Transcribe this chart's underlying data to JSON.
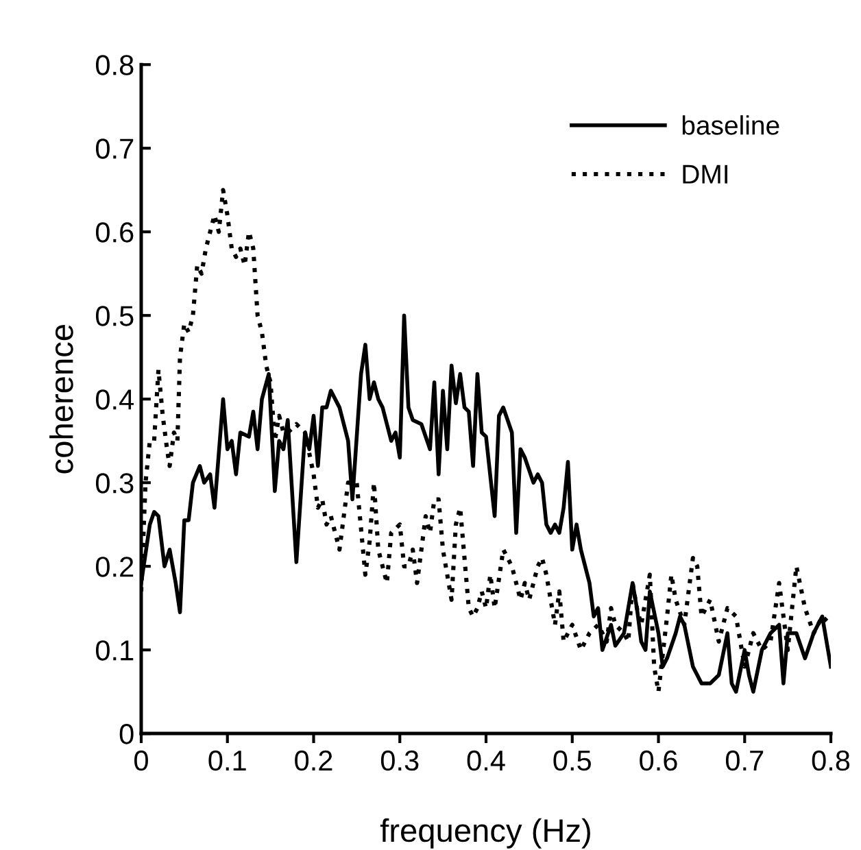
{
  "chart_data": {
    "type": "line",
    "xlabel": "frequency (Hz)",
    "ylabel": "coherence",
    "xlim": [
      0,
      0.8
    ],
    "ylim": [
      0,
      0.8
    ],
    "xticks": [
      0,
      0.1,
      0.2,
      0.3,
      0.4,
      0.5,
      0.6,
      0.7,
      0.8
    ],
    "yticks": [
      0,
      0.1,
      0.2,
      0.3,
      0.4,
      0.5,
      0.6,
      0.7,
      0.8
    ],
    "grid": false,
    "legend": "top right",
    "marker": "none",
    "series": [
      {
        "name": "baseline",
        "color": "#000000",
        "line_style": "solid",
        "x": [
          0,
          0.01,
          0.015,
          0.02,
          0.027,
          0.033,
          0.04,
          0.045,
          0.05,
          0.055,
          0.06,
          0.068,
          0.073,
          0.08,
          0.085,
          0.095,
          0.1,
          0.105,
          0.11,
          0.115,
          0.125,
          0.13,
          0.135,
          0.14,
          0.148,
          0.155,
          0.16,
          0.165,
          0.17,
          0.18,
          0.19,
          0.195,
          0.2,
          0.205,
          0.21,
          0.215,
          0.22,
          0.23,
          0.24,
          0.245,
          0.255,
          0.26,
          0.265,
          0.27,
          0.275,
          0.28,
          0.29,
          0.295,
          0.3,
          0.305,
          0.31,
          0.315,
          0.325,
          0.335,
          0.34,
          0.345,
          0.35,
          0.355,
          0.36,
          0.365,
          0.37,
          0.375,
          0.38,
          0.385,
          0.39,
          0.395,
          0.4,
          0.41,
          0.415,
          0.42,
          0.43,
          0.435,
          0.44,
          0.445,
          0.455,
          0.46,
          0.465,
          0.47,
          0.475,
          0.48,
          0.485,
          0.49,
          0.495,
          0.5,
          0.505,
          0.51,
          0.52,
          0.525,
          0.53,
          0.535,
          0.545,
          0.55,
          0.56,
          0.57,
          0.575,
          0.58,
          0.585,
          0.59,
          0.6,
          0.605,
          0.61,
          0.62,
          0.625,
          0.63,
          0.64,
          0.65,
          0.66,
          0.67,
          0.68,
          0.685,
          0.69,
          0.7,
          0.705,
          0.71,
          0.72,
          0.73,
          0.74,
          0.745,
          0.75,
          0.76,
          0.77,
          0.78,
          0.79,
          0.8
        ],
        "values": [
          0.18,
          0.25,
          0.265,
          0.26,
          0.2,
          0.22,
          0.18,
          0.145,
          0.255,
          0.255,
          0.3,
          0.32,
          0.3,
          0.31,
          0.27,
          0.4,
          0.34,
          0.35,
          0.31,
          0.36,
          0.355,
          0.385,
          0.34,
          0.4,
          0.43,
          0.29,
          0.35,
          0.34,
          0.375,
          0.205,
          0.36,
          0.34,
          0.38,
          0.32,
          0.39,
          0.39,
          0.41,
          0.39,
          0.35,
          0.28,
          0.43,
          0.465,
          0.4,
          0.42,
          0.4,
          0.39,
          0.35,
          0.36,
          0.33,
          0.5,
          0.39,
          0.375,
          0.37,
          0.34,
          0.42,
          0.31,
          0.41,
          0.34,
          0.44,
          0.395,
          0.43,
          0.39,
          0.385,
          0.32,
          0.43,
          0.36,
          0.355,
          0.26,
          0.38,
          0.39,
          0.36,
          0.24,
          0.34,
          0.33,
          0.3,
          0.31,
          0.3,
          0.25,
          0.24,
          0.25,
          0.24,
          0.27,
          0.325,
          0.22,
          0.25,
          0.22,
          0.18,
          0.14,
          0.15,
          0.1,
          0.13,
          0.105,
          0.12,
          0.18,
          0.15,
          0.11,
          0.1,
          0.17,
          0.12,
          0.08,
          0.09,
          0.12,
          0.14,
          0.13,
          0.08,
          0.06,
          0.06,
          0.07,
          0.12,
          0.06,
          0.05,
          0.1,
          0.07,
          0.05,
          0.1,
          0.12,
          0.13,
          0.06,
          0.12,
          0.12,
          0.09,
          0.12,
          0.14,
          0.08
        ]
      },
      {
        "name": "DMI",
        "color": "#000000",
        "line_style": "dotted",
        "x": [
          0,
          0.005,
          0.01,
          0.015,
          0.02,
          0.025,
          0.03,
          0.033,
          0.038,
          0.042,
          0.045,
          0.05,
          0.055,
          0.06,
          0.065,
          0.07,
          0.075,
          0.08,
          0.085,
          0.09,
          0.095,
          0.1,
          0.105,
          0.11,
          0.115,
          0.12,
          0.125,
          0.13,
          0.135,
          0.14,
          0.145,
          0.15,
          0.155,
          0.16,
          0.165,
          0.17,
          0.18,
          0.19,
          0.2,
          0.205,
          0.21,
          0.215,
          0.22,
          0.23,
          0.235,
          0.24,
          0.25,
          0.26,
          0.265,
          0.27,
          0.275,
          0.28,
          0.285,
          0.29,
          0.3,
          0.305,
          0.31,
          0.315,
          0.32,
          0.33,
          0.335,
          0.34,
          0.345,
          0.35,
          0.36,
          0.365,
          0.37,
          0.38,
          0.385,
          0.39,
          0.395,
          0.4,
          0.405,
          0.41,
          0.42,
          0.425,
          0.43,
          0.44,
          0.445,
          0.45,
          0.46,
          0.465,
          0.47,
          0.48,
          0.485,
          0.49,
          0.5,
          0.51,
          0.52,
          0.53,
          0.54,
          0.545,
          0.55,
          0.56,
          0.565,
          0.57,
          0.575,
          0.58,
          0.59,
          0.595,
          0.6,
          0.61,
          0.615,
          0.62,
          0.63,
          0.64,
          0.645,
          0.65,
          0.66,
          0.67,
          0.68,
          0.69,
          0.7,
          0.71,
          0.72,
          0.73,
          0.74,
          0.75,
          0.76,
          0.77,
          0.78,
          0.79,
          0.8
        ],
        "values": [
          0.17,
          0.3,
          0.35,
          0.35,
          0.435,
          0.38,
          0.34,
          0.32,
          0.36,
          0.35,
          0.45,
          0.49,
          0.48,
          0.5,
          0.56,
          0.55,
          0.58,
          0.6,
          0.62,
          0.6,
          0.65,
          0.62,
          0.58,
          0.57,
          0.58,
          0.56,
          0.6,
          0.58,
          0.5,
          0.48,
          0.44,
          0.42,
          0.35,
          0.38,
          0.36,
          0.36,
          0.37,
          0.36,
          0.31,
          0.27,
          0.28,
          0.25,
          0.26,
          0.22,
          0.26,
          0.3,
          0.3,
          0.19,
          0.23,
          0.3,
          0.22,
          0.2,
          0.18,
          0.24,
          0.25,
          0.2,
          0.2,
          0.22,
          0.18,
          0.26,
          0.24,
          0.28,
          0.28,
          0.22,
          0.16,
          0.25,
          0.27,
          0.15,
          0.14,
          0.15,
          0.17,
          0.15,
          0.19,
          0.15,
          0.22,
          0.21,
          0.2,
          0.16,
          0.18,
          0.16,
          0.2,
          0.21,
          0.19,
          0.13,
          0.17,
          0.11,
          0.13,
          0.1,
          0.12,
          0.13,
          0.11,
          0.15,
          0.13,
          0.12,
          0.11,
          0.18,
          0.15,
          0.13,
          0.19,
          0.08,
          0.05,
          0.14,
          0.19,
          0.16,
          0.13,
          0.21,
          0.2,
          0.14,
          0.16,
          0.11,
          0.15,
          0.14,
          0.08,
          0.12,
          0.1,
          0.11,
          0.18,
          0.1,
          0.2,
          0.15,
          0.12,
          0.14,
          0.13
        ]
      }
    ]
  }
}
